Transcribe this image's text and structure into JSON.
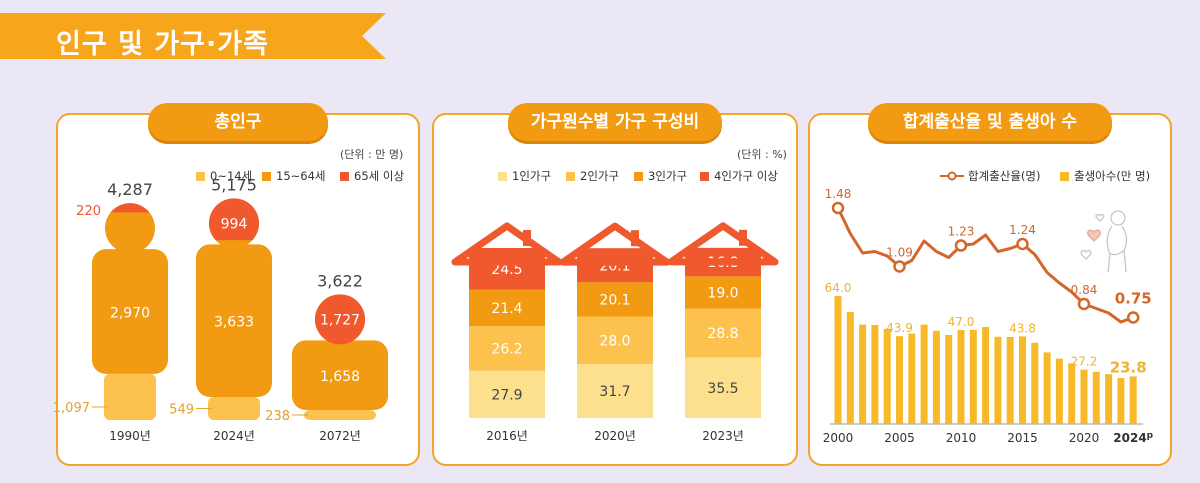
{
  "page": {
    "title": "인구 및 가구·가족"
  },
  "colors": {
    "orange": "#f29a12",
    "light": "#fcc24d",
    "pale": "#fde08e",
    "red": "#f0582d",
    "line": "#d4662a"
  },
  "panels": {
    "population": {
      "title": "총인구",
      "unit": "(단위 : 만 명)",
      "legend": [
        "0~14세",
        "15~64세",
        "65세 이상"
      ]
    },
    "households": {
      "title": "가구원수별 가구 구성비",
      "unit": "(단위 : %)",
      "legend": [
        "1인가구",
        "2인가구",
        "3인가구",
        "4인가구 이상"
      ]
    },
    "births": {
      "title": "합계출산율 및 출생아 수",
      "legend": [
        "합계출산율(명)",
        "출생아수(만 명)"
      ],
      "last_x_suffix": "p"
    }
  },
  "chart_data": [
    {
      "type": "bar",
      "title": "총인구",
      "categories": [
        "1990년",
        "2024년",
        "2072년"
      ],
      "totals": [
        4287,
        5175,
        3622
      ],
      "totals_labels": [
        "4,287",
        "5,175",
        "3,622"
      ],
      "series": [
        {
          "name": "0~14세",
          "values": [
            1097,
            549,
            238
          ],
          "labels": [
            "1,097",
            "549",
            "238"
          ]
        },
        {
          "name": "15~64세",
          "values": [
            2970,
            3633,
            1658
          ],
          "labels": [
            "2,970",
            "3,633",
            "1,658"
          ]
        },
        {
          "name": "65세 이상",
          "values": [
            220,
            994,
            1727
          ],
          "labels": [
            "220",
            "994",
            "1,727"
          ]
        }
      ]
    },
    {
      "type": "bar",
      "title": "가구원수별 가구 구성비",
      "categories": [
        "2016년",
        "2020년",
        "2023년"
      ],
      "series": [
        {
          "name": "1인가구",
          "values": [
            27.9,
            31.7,
            35.5
          ]
        },
        {
          "name": "2인가구",
          "values": [
            26.2,
            28.0,
            28.8
          ]
        },
        {
          "name": "3인가구",
          "values": [
            21.4,
            20.1,
            19.0
          ]
        },
        {
          "name": "4인가구 이상",
          "values": [
            24.5,
            20.1,
            16.8
          ]
        }
      ]
    },
    {
      "type": "bar",
      "title": "합계출산율 및 출생아 수",
      "x": [
        2000,
        2001,
        2002,
        2003,
        2004,
        2005,
        2006,
        2007,
        2008,
        2009,
        2010,
        2011,
        2012,
        2013,
        2014,
        2015,
        2016,
        2017,
        2018,
        2019,
        2020,
        2021,
        2022,
        2023,
        2024
      ],
      "xticks": [
        "2000",
        "2005",
        "2010",
        "2015",
        "2020",
        "2024"
      ],
      "series": [
        {
          "name": "출생아수(만 명)",
          "type": "bar",
          "values": [
            64.0,
            56.0,
            49.7,
            49.5,
            47.6,
            43.9,
            45.2,
            49.7,
            46.6,
            44.5,
            47.0,
            47.1,
            48.5,
            43.6,
            43.5,
            43.8,
            40.6,
            35.8,
            32.7,
            30.3,
            27.2,
            26.1,
            24.9,
            23.0,
            23.8
          ]
        },
        {
          "name": "합계출산율(명)",
          "type": "line",
          "values": [
            1.48,
            1.31,
            1.18,
            1.19,
            1.16,
            1.09,
            1.13,
            1.26,
            1.19,
            1.15,
            1.23,
            1.24,
            1.3,
            1.19,
            1.21,
            1.24,
            1.17,
            1.05,
            0.98,
            0.92,
            0.84,
            0.81,
            0.78,
            0.72,
            0.75
          ]
        }
      ],
      "labeled_bars": {
        "2000": "64.0",
        "2005": "43.9",
        "2010": "47.0",
        "2015": "43.8",
        "2020": "27.2",
        "2024": "23.8"
      },
      "labeled_rates": {
        "2000": "1.48",
        "2005": "1.09",
        "2010": "1.23",
        "2015": "1.24",
        "2020": "0.84",
        "2024": "0.75"
      }
    }
  ]
}
